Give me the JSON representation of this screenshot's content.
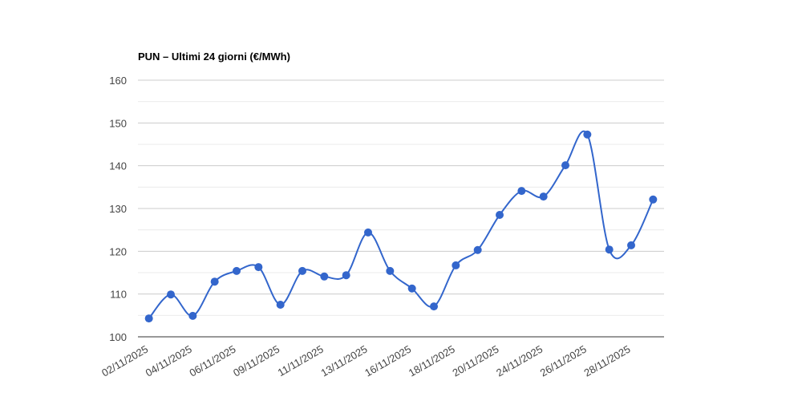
{
  "chart_data": {
    "type": "line",
    "title": "PUN – Ultimi 24 giorni (€/MWh)",
    "categories": [
      "02/11/2025",
      null,
      "04/11/2025",
      null,
      "06/11/2025",
      null,
      "09/11/2025",
      null,
      "11/11/2025",
      null,
      "13/11/2025",
      null,
      "16/11/2025",
      null,
      "18/11/2025",
      null,
      "20/11/2025",
      null,
      "24/11/2025",
      null,
      "26/11/2025",
      null,
      "28/11/2025",
      null
    ],
    "series": [
      {
        "name": "PUN",
        "color": "#3366cc",
        "values": [
          104.3,
          109.9,
          104.9,
          112.9,
          115.4,
          116.3,
          107.5,
          115.4,
          114.1,
          114.4,
          124.4,
          115.4,
          111.3,
          107.1,
          116.7,
          120.3,
          128.5,
          134.1,
          132.8,
          140.1,
          147.3,
          120.4,
          121.4,
          132.1
        ]
      }
    ],
    "ylim": [
      100,
      160
    ],
    "yticks": [
      100,
      110,
      120,
      130,
      140,
      150,
      160
    ],
    "minor_yticks": [
      105,
      115,
      125,
      135,
      145,
      155
    ],
    "grid": true,
    "smooth": true
  }
}
